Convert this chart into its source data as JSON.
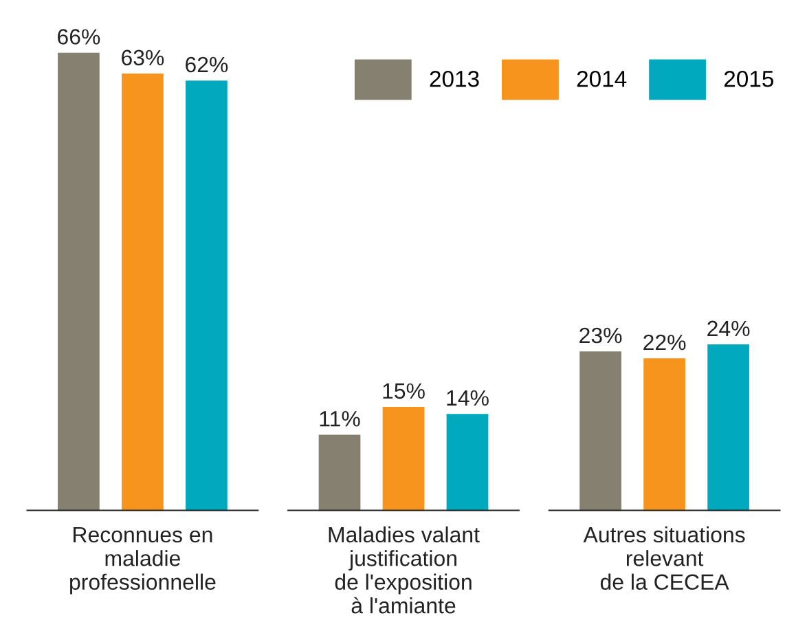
{
  "chart_data": {
    "type": "bar",
    "categories": [
      "Reconnues en\nmaladie\nprofessionnelle",
      "Maladies valant\njustification\nde l'exposition\nà l'amiante",
      "Autres situations\nrelevant\nde la CECEA"
    ],
    "series": [
      {
        "name": "2013",
        "color": "#858070",
        "values": [
          66,
          11,
          23
        ],
        "value_labels": [
          "66%",
          "11%",
          "23%"
        ]
      },
      {
        "name": "2014",
        "color": "#f7941d",
        "values": [
          63,
          15,
          22
        ],
        "value_labels": [
          "63%",
          "15%",
          "22%"
        ]
      },
      {
        "name": "2015",
        "color": "#00a9bd",
        "values": [
          62,
          14,
          24
        ],
        "value_labels": [
          "62%",
          "14%",
          "24%"
        ]
      }
    ],
    "legend": "top right",
    "grid": false
  }
}
